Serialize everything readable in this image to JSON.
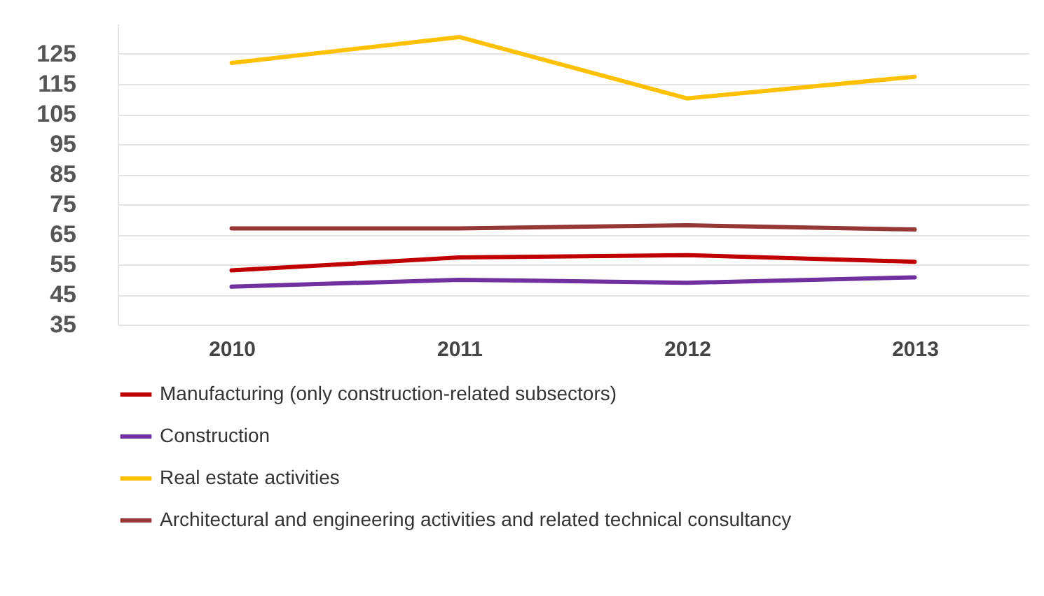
{
  "chart_data": {
    "type": "line",
    "categories": [
      "2010",
      "2011",
      "2012",
      "2013"
    ],
    "series": [
      {
        "name": "Manufacturing (only construction-related subsectors)",
        "color": "#c00000",
        "values": [
          53,
          57.3,
          58.1,
          55.9
        ]
      },
      {
        "name": "Construction",
        "color": "#7030a0",
        "values": [
          47.6,
          49.9,
          48.9,
          50.7
        ]
      },
      {
        "name": "Real estate activities",
        "color": "#ffc000",
        "values": [
          122,
          130.6,
          110.2,
          117.4
        ]
      },
      {
        "name": "Architectural and engineering activities and related technical consultancy",
        "color": "#953735",
        "values": [
          67,
          67,
          68,
          66.6
        ]
      }
    ],
    "ylim": [
      35,
      135
    ],
    "yticks": [
      35,
      45,
      55,
      65,
      75,
      85,
      95,
      105,
      115,
      125
    ],
    "grid": "y",
    "legend": "bottom",
    "marker": "none",
    "line_style": "solid"
  }
}
